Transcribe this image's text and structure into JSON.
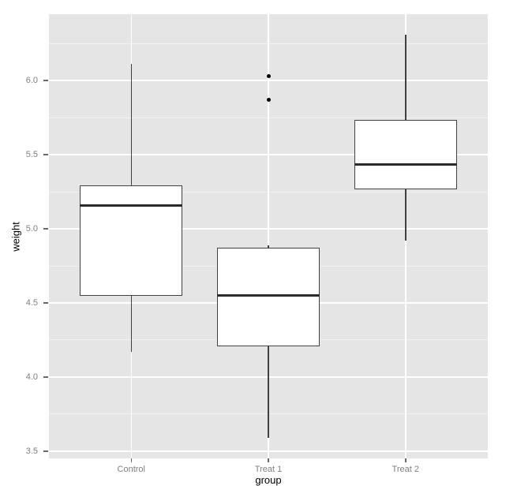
{
  "figure": {
    "background": "#FFFFFF"
  },
  "chart_data": {
    "type": "boxplot",
    "title": "",
    "xlabel": "group",
    "ylabel": "weight",
    "categories": [
      "Control",
      "Treat 1",
      "Treat 2"
    ],
    "series": [
      {
        "label": "Control",
        "whisker_low": 4.17,
        "q1": 4.5475,
        "median": 5.155,
        "q3": 5.2925,
        "whisker_high": 6.11,
        "outliers": []
      },
      {
        "label": "Treat 1",
        "whisker_low": 3.59,
        "q1": 4.2075,
        "median": 4.55,
        "q3": 4.87,
        "whisker_high": 4.89,
        "outliers": [
          5.87,
          6.03
        ]
      },
      {
        "label": "Treat 2",
        "whisker_low": 4.92,
        "q1": 5.2675,
        "median": 5.435,
        "q3": 5.735,
        "whisker_high": 6.31,
        "outliers": []
      }
    ],
    "y_ticks": [
      {
        "value": 3.5,
        "label": "3.5"
      },
      {
        "value": 4.0,
        "label": "4.0"
      },
      {
        "value": 4.5,
        "label": "4.5"
      },
      {
        "value": 5.0,
        "label": "5.0"
      },
      {
        "value": 5.5,
        "label": "5.5"
      },
      {
        "value": 6.0,
        "label": "6.0"
      }
    ],
    "y_minor_breaks": [
      3.75,
      4.25,
      4.75,
      5.25,
      5.75,
      6.25
    ],
    "y_domain": [
      3.452,
      6.447
    ],
    "box_width_units": 0.75,
    "grid": true,
    "legend": false,
    "style": {
      "panel_bg": "#E5E5E5",
      "grid_major": "#FFFFFF",
      "grid_minor": "#F2F2F2",
      "box_fill": "#FFFFFF",
      "box_stroke": "#404040",
      "median_stroke": "#2B2B2B",
      "whisker_stroke": "#404040",
      "outlier_color": "#000000",
      "tick_label_color": "#7F7F7F",
      "tick_mark_color": "#666666",
      "axis_title_color": "#000000"
    }
  }
}
